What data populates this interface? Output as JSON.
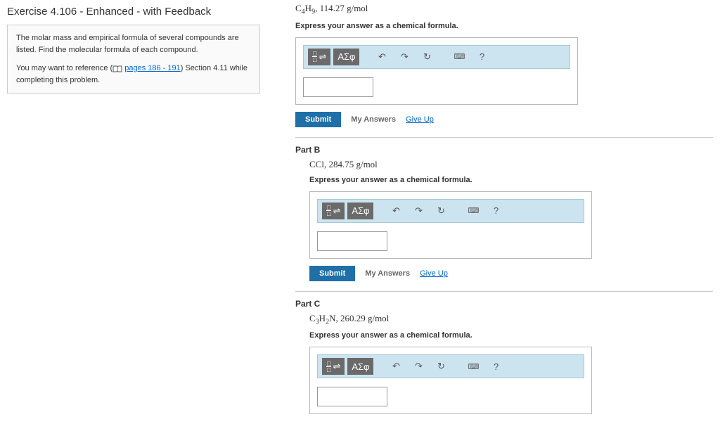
{
  "exercise": {
    "title": "Exercise 4.106 - Enhanced - with Feedback",
    "description1": "The molar mass and empirical formula of several compounds are listed. Find the molecular formula of each compound.",
    "description2_pre": "You may want to reference (",
    "description2_link": "pages 186 - 191",
    "description2_post": ") Section 4.11 while completing this problem."
  },
  "toolbar": {
    "greek": "ΑΣφ",
    "undo": "↶",
    "redo": "↷",
    "reset": "↻",
    "keyboard": "⌨",
    "help": "?"
  },
  "buttons": {
    "submit": "Submit",
    "myAnswers": "My Answers",
    "giveUp": "Give Up"
  },
  "partA": {
    "formula_html": "C<sub>4</sub>H<sub>9</sub>, 114.27 g/mol",
    "instruction": "Express your answer as a chemical formula.",
    "value": ""
  },
  "partB": {
    "label": "Part B",
    "formula_html": "CCl, 284.75 g/mol",
    "instruction": "Express your answer as a chemical formula.",
    "value": ""
  },
  "partC": {
    "label": "Part C",
    "formula_html": "C<sub>3</sub>H<sub>2</sub>N, 260.29 g/mol",
    "instruction": "Express your answer as a chemical formula.",
    "value": ""
  }
}
